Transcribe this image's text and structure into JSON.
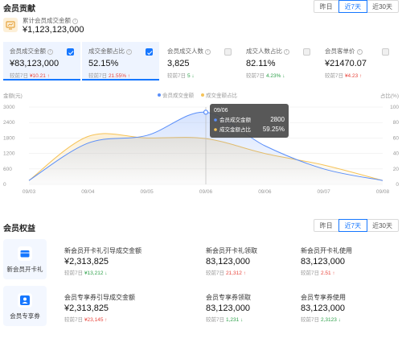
{
  "contrib": {
    "title": "会员贡献",
    "tabs": [
      "昨日",
      "近7天",
      "近30天"
    ],
    "active_tab": 1,
    "total_label": "累计会员成交金额",
    "total_value": "¥1,123,123,000",
    "metrics": [
      {
        "label": "会员成交金额",
        "value": "¥83,123,000",
        "cmp_label": "较前7日",
        "cmp_value": "¥10.21",
        "trend": "up",
        "checked": true,
        "selected": true
      },
      {
        "label": "成交金额占比",
        "value": "52.15%",
        "cmp_label": "较前7日",
        "cmp_value": "21.55%",
        "trend": "up",
        "checked": true,
        "selected": true
      },
      {
        "label": "会员成交人数",
        "value": "3,825",
        "cmp_label": "较前7日",
        "cmp_value": "5",
        "trend": "down",
        "checked": false,
        "selected": false
      },
      {
        "label": "成交人数占比",
        "value": "82.11%",
        "cmp_label": "较前7日",
        "cmp_value": "4.23%",
        "trend": "down",
        "checked": false,
        "selected": false
      },
      {
        "label": "会员客单价",
        "value": "¥21470.07",
        "cmp_label": "较前7日",
        "cmp_value": "¥4.23",
        "trend": "up",
        "checked": false,
        "selected": false
      }
    ]
  },
  "chart_data": {
    "type": "line",
    "y_left_label": "金额(元)",
    "y_right_label": "占比(%)",
    "x": [
      "09/03",
      "09/04",
      "09/05",
      "09/06",
      "09/06",
      "09/07",
      "09/08"
    ],
    "y_left_ticks": [
      0,
      600,
      1200,
      1800,
      2400,
      3000
    ],
    "y_right_ticks": [
      0,
      20,
      40,
      60,
      80,
      100
    ],
    "ylim_left": [
      0,
      3000
    ],
    "ylim_right": [
      0,
      100
    ],
    "series": [
      {
        "name": "会员成交金额",
        "axis": "left",
        "color": "#5b8ff9",
        "values": [
          150,
          1600,
          1900,
          2800,
          1500,
          600,
          150
        ]
      },
      {
        "name": "成交金额占比",
        "axis": "right",
        "color": "#f6c358",
        "values": [
          5,
          62,
          60,
          59.25,
          40,
          25,
          5
        ]
      }
    ],
    "tooltip": {
      "date": "09/06",
      "rows": [
        {
          "name": "会员成交金额",
          "value": "2800",
          "color": "#5b8ff9"
        },
        {
          "name": "成交金额占比",
          "value": "59.25%",
          "color": "#f6c358"
        }
      ]
    }
  },
  "rights": {
    "title": "会员权益",
    "tabs": [
      "昨日",
      "近7天",
      "近30天"
    ],
    "active_tab": 1,
    "rows": [
      {
        "name": "新会员开卡礼",
        "icon": "gift-icon",
        "items": [
          {
            "label": "新会员开卡礼引导成交金额",
            "value": "¥2,313,825",
            "cmp_label": "较前7日",
            "cmp_value": "¥13,212",
            "trend": "down"
          },
          {
            "label": "新会员开卡礼领取",
            "value": "83,123,000",
            "cmp_label": "较前7日",
            "cmp_value": "21,312",
            "trend": "up"
          },
          {
            "label": "新会员开卡礼使用",
            "value": "83,123,000",
            "cmp_label": "较前7日",
            "cmp_value": "2.51",
            "trend": "up"
          }
        ]
      },
      {
        "name": "会员专享券",
        "icon": "user-coupon-icon",
        "items": [
          {
            "label": "会员专享券引导成交金额",
            "value": "¥2,313,825",
            "cmp_label": "较前7日",
            "cmp_value": "¥23,145",
            "trend": "up"
          },
          {
            "label": "会员专享券领取",
            "value": "83,123,000",
            "cmp_label": "较前7日",
            "cmp_value": "1,231",
            "trend": "down"
          },
          {
            "label": "会员专享券使用",
            "value": "83,123,000",
            "cmp_label": "较前7日",
            "cmp_value": "2,3123",
            "trend": "down"
          }
        ]
      }
    ]
  }
}
